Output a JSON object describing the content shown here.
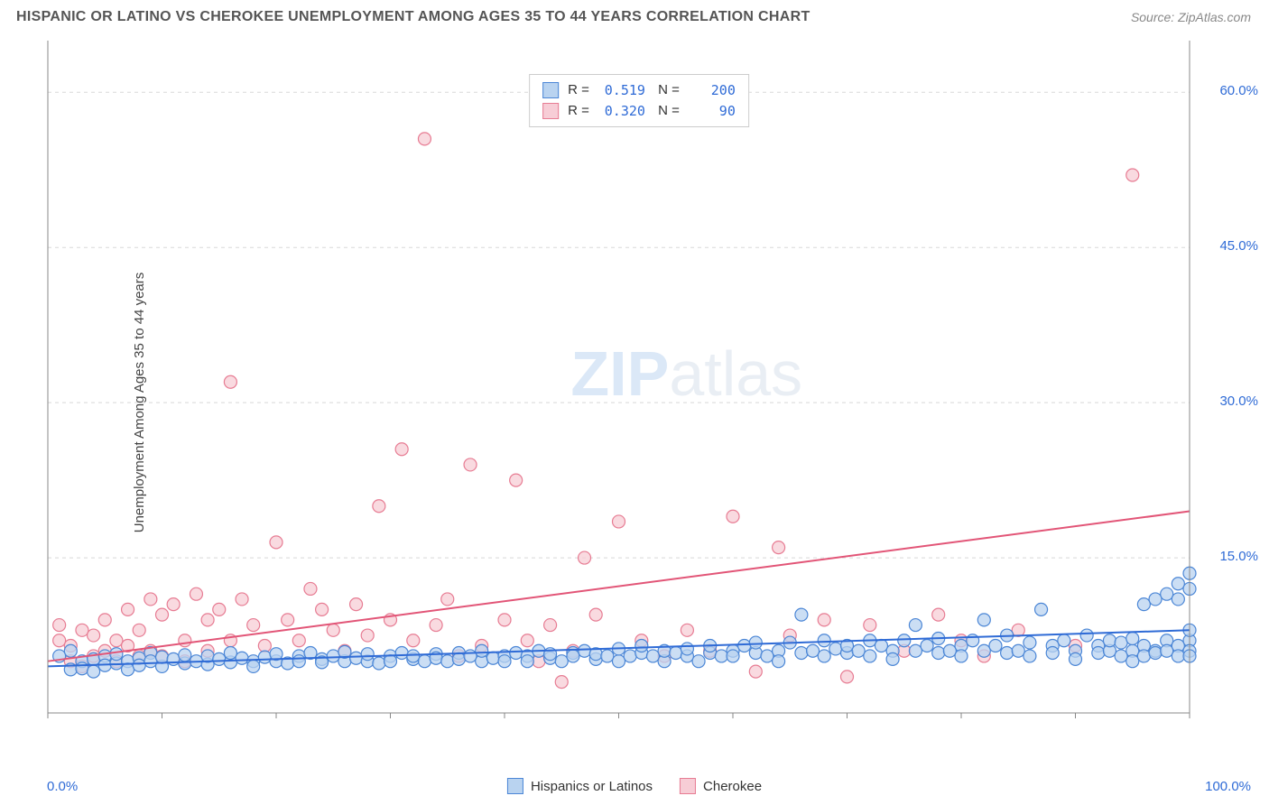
{
  "title": "HISPANIC OR LATINO VS CHEROKEE UNEMPLOYMENT AMONG AGES 35 TO 44 YEARS CORRELATION CHART",
  "source": "Source: ZipAtlas.com",
  "ylabel": "Unemployment Among Ages 35 to 44 years",
  "watermark_a": "ZIP",
  "watermark_b": "atlas",
  "chart": {
    "type": "scatter",
    "xlim": [
      0,
      100
    ],
    "ylim": [
      0,
      65
    ],
    "x_ticks_minor_step": 10,
    "y_grid": [
      15,
      30,
      45,
      60
    ],
    "y_grid_labels": [
      "15.0%",
      "30.0%",
      "45.0%",
      "60.0%"
    ],
    "x_axis_labels": {
      "left": "0.0%",
      "right": "100.0%"
    },
    "background_color": "#ffffff",
    "grid_color": "#d8d8d8",
    "axis_color": "#888888",
    "marker_radius": 7,
    "marker_stroke_width": 1.2,
    "line_width": 2
  },
  "series": [
    {
      "name": "Hispanics or Latinos",
      "fill": "#b9d3f0",
      "stroke": "#4b86d6",
      "line_color": "#2f6bd6",
      "R": "0.519",
      "N": "200",
      "trend": {
        "x1": 0,
        "y1": 4.5,
        "x2": 100,
        "y2": 8.0
      },
      "points": [
        [
          1,
          5.5
        ],
        [
          2,
          4.2
        ],
        [
          2,
          6.0
        ],
        [
          3,
          5.0
        ],
        [
          3,
          4.3
        ],
        [
          4,
          5.2
        ],
        [
          4,
          4.0
        ],
        [
          5,
          5.5
        ],
        [
          5,
          4.6
        ],
        [
          6,
          4.8
        ],
        [
          6,
          5.7
        ],
        [
          7,
          5.0
        ],
        [
          7,
          4.2
        ],
        [
          8,
          5.3
        ],
        [
          8,
          4.6
        ],
        [
          9,
          5.8
        ],
        [
          9,
          5.0
        ],
        [
          10,
          4.5
        ],
        [
          10,
          5.4
        ],
        [
          11,
          5.2
        ],
        [
          12,
          4.8
        ],
        [
          12,
          5.6
        ],
        [
          13,
          5.0
        ],
        [
          14,
          4.7
        ],
        [
          14,
          5.5
        ],
        [
          15,
          5.2
        ],
        [
          16,
          4.9
        ],
        [
          16,
          5.8
        ],
        [
          17,
          5.3
        ],
        [
          18,
          5.0
        ],
        [
          18,
          4.5
        ],
        [
          19,
          5.4
        ],
        [
          20,
          5.0
        ],
        [
          20,
          5.7
        ],
        [
          21,
          4.8
        ],
        [
          22,
          5.5
        ],
        [
          22,
          5.0
        ],
        [
          23,
          5.8
        ],
        [
          24,
          5.2
        ],
        [
          24,
          4.9
        ],
        [
          25,
          5.5
        ],
        [
          26,
          5.0
        ],
        [
          26,
          5.9
        ],
        [
          27,
          5.3
        ],
        [
          28,
          5.0
        ],
        [
          28,
          5.7
        ],
        [
          29,
          4.8
        ],
        [
          30,
          5.5
        ],
        [
          30,
          5.0
        ],
        [
          31,
          5.8
        ],
        [
          32,
          5.2
        ],
        [
          32,
          5.5
        ],
        [
          33,
          5.0
        ],
        [
          34,
          5.7
        ],
        [
          34,
          5.3
        ],
        [
          35,
          5.0
        ],
        [
          36,
          5.8
        ],
        [
          36,
          5.2
        ],
        [
          37,
          5.5
        ],
        [
          38,
          5.0
        ],
        [
          38,
          6.0
        ],
        [
          39,
          5.3
        ],
        [
          40,
          5.5
        ],
        [
          40,
          5.0
        ],
        [
          41,
          5.8
        ],
        [
          42,
          5.5
        ],
        [
          42,
          5.0
        ],
        [
          43,
          6.0
        ],
        [
          44,
          5.3
        ],
        [
          44,
          5.7
        ],
        [
          45,
          5.0
        ],
        [
          46,
          5.8
        ],
        [
          46,
          5.5
        ],
        [
          47,
          6.0
        ],
        [
          48,
          5.2
        ],
        [
          48,
          5.7
        ],
        [
          49,
          5.5
        ],
        [
          50,
          5.0
        ],
        [
          50,
          6.2
        ],
        [
          51,
          5.5
        ],
        [
          52,
          5.8
        ],
        [
          52,
          6.5
        ],
        [
          53,
          5.5
        ],
        [
          54,
          5.0
        ],
        [
          54,
          6.0
        ],
        [
          55,
          5.8
        ],
        [
          56,
          5.5
        ],
        [
          56,
          6.2
        ],
        [
          57,
          5.0
        ],
        [
          58,
          5.8
        ],
        [
          58,
          6.5
        ],
        [
          59,
          5.5
        ],
        [
          60,
          6.0
        ],
        [
          60,
          5.5
        ],
        [
          61,
          6.5
        ],
        [
          62,
          5.8
        ],
        [
          62,
          6.8
        ],
        [
          63,
          5.5
        ],
        [
          64,
          6.0
        ],
        [
          64,
          5.0
        ],
        [
          65,
          6.8
        ],
        [
          66,
          5.8
        ],
        [
          66,
          9.5
        ],
        [
          67,
          6.0
        ],
        [
          68,
          5.5
        ],
        [
          68,
          7.0
        ],
        [
          69,
          6.2
        ],
        [
          70,
          5.8
        ],
        [
          70,
          6.5
        ],
        [
          71,
          6.0
        ],
        [
          72,
          7.0
        ],
        [
          72,
          5.5
        ],
        [
          73,
          6.5
        ],
        [
          74,
          6.0
        ],
        [
          74,
          5.2
        ],
        [
          75,
          7.0
        ],
        [
          76,
          8.5
        ],
        [
          76,
          6.0
        ],
        [
          77,
          6.5
        ],
        [
          78,
          5.8
        ],
        [
          78,
          7.2
        ],
        [
          79,
          6.0
        ],
        [
          80,
          6.5
        ],
        [
          80,
          5.5
        ],
        [
          81,
          7.0
        ],
        [
          82,
          9.0
        ],
        [
          82,
          6.0
        ],
        [
          83,
          6.5
        ],
        [
          84,
          5.8
        ],
        [
          84,
          7.5
        ],
        [
          85,
          6.0
        ],
        [
          86,
          6.8
        ],
        [
          86,
          5.5
        ],
        [
          87,
          10.0
        ],
        [
          88,
          6.5
        ],
        [
          88,
          5.8
        ],
        [
          89,
          7.0
        ],
        [
          90,
          6.0
        ],
        [
          90,
          5.2
        ],
        [
          91,
          7.5
        ],
        [
          92,
          6.5
        ],
        [
          92,
          5.8
        ],
        [
          93,
          6.0
        ],
        [
          93,
          7.0
        ],
        [
          94,
          5.5
        ],
        [
          94,
          6.8
        ],
        [
          95,
          6.0
        ],
        [
          95,
          5.0
        ],
        [
          95,
          7.2
        ],
        [
          96,
          6.5
        ],
        [
          96,
          5.5
        ],
        [
          96,
          10.5
        ],
        [
          97,
          6.0
        ],
        [
          97,
          5.8
        ],
        [
          97,
          11.0
        ],
        [
          98,
          7.0
        ],
        [
          98,
          6.0
        ],
        [
          98,
          11.5
        ],
        [
          99,
          6.5
        ],
        [
          99,
          5.5
        ],
        [
          99,
          12.5
        ],
        [
          99,
          11.0
        ],
        [
          100,
          7.0
        ],
        [
          100,
          6.0
        ],
        [
          100,
          13.5
        ],
        [
          100,
          12.0
        ],
        [
          100,
          5.5
        ],
        [
          100,
          8.0
        ]
      ]
    },
    {
      "name": "Cherokee",
      "fill": "#f7cdd6",
      "stroke": "#e77c93",
      "line_color": "#e25577",
      "R": "0.320",
      "N": "90",
      "trend": {
        "x1": 0,
        "y1": 5.0,
        "x2": 100,
        "y2": 19.5
      },
      "points": [
        [
          1,
          7.0
        ],
        [
          1,
          8.5
        ],
        [
          2,
          5.0
        ],
        [
          2,
          6.5
        ],
        [
          3,
          8.0
        ],
        [
          3,
          4.5
        ],
        [
          4,
          7.5
        ],
        [
          4,
          5.5
        ],
        [
          5,
          9.0
        ],
        [
          5,
          6.0
        ],
        [
          6,
          7.0
        ],
        [
          6,
          5.0
        ],
        [
          7,
          10.0
        ],
        [
          7,
          6.5
        ],
        [
          8,
          8.0
        ],
        [
          8,
          5.5
        ],
        [
          9,
          11.0
        ],
        [
          9,
          6.0
        ],
        [
          10,
          9.5
        ],
        [
          10,
          5.5
        ],
        [
          11,
          10.5
        ],
        [
          12,
          7.0
        ],
        [
          12,
          5.0
        ],
        [
          13,
          11.5
        ],
        [
          14,
          9.0
        ],
        [
          14,
          6.0
        ],
        [
          15,
          10.0
        ],
        [
          16,
          7.0
        ],
        [
          16,
          32.0
        ],
        [
          17,
          11.0
        ],
        [
          18,
          8.5
        ],
        [
          19,
          6.5
        ],
        [
          20,
          16.5
        ],
        [
          21,
          9.0
        ],
        [
          22,
          7.0
        ],
        [
          23,
          12.0
        ],
        [
          24,
          10.0
        ],
        [
          25,
          8.0
        ],
        [
          26,
          6.0
        ],
        [
          27,
          10.5
        ],
        [
          28,
          7.5
        ],
        [
          29,
          20.0
        ],
        [
          30,
          9.0
        ],
        [
          31,
          25.5
        ],
        [
          32,
          7.0
        ],
        [
          33,
          55.5
        ],
        [
          34,
          8.5
        ],
        [
          35,
          11.0
        ],
        [
          36,
          5.5
        ],
        [
          37,
          24.0
        ],
        [
          38,
          6.5
        ],
        [
          40,
          9.0
        ],
        [
          41,
          22.5
        ],
        [
          42,
          7.0
        ],
        [
          43,
          5.0
        ],
        [
          44,
          8.5
        ],
        [
          45,
          3.0
        ],
        [
          46,
          6.0
        ],
        [
          47,
          15.0
        ],
        [
          48,
          9.5
        ],
        [
          50,
          18.5
        ],
        [
          52,
          7.0
        ],
        [
          54,
          5.5
        ],
        [
          56,
          8.0
        ],
        [
          58,
          6.0
        ],
        [
          60,
          19.0
        ],
        [
          62,
          4.0
        ],
        [
          64,
          16.0
        ],
        [
          65,
          7.5
        ],
        [
          68,
          9.0
        ],
        [
          70,
          3.5
        ],
        [
          72,
          8.5
        ],
        [
          75,
          6.0
        ],
        [
          78,
          9.5
        ],
        [
          80,
          7.0
        ],
        [
          82,
          5.5
        ],
        [
          85,
          8.0
        ],
        [
          90,
          6.5
        ],
        [
          95,
          52.0
        ]
      ]
    }
  ],
  "bottom_legend": [
    {
      "label": "Hispanics or Latinos",
      "fill": "#b9d3f0",
      "stroke": "#4b86d6"
    },
    {
      "label": "Cherokee",
      "fill": "#f7cdd6",
      "stroke": "#e77c93"
    }
  ]
}
